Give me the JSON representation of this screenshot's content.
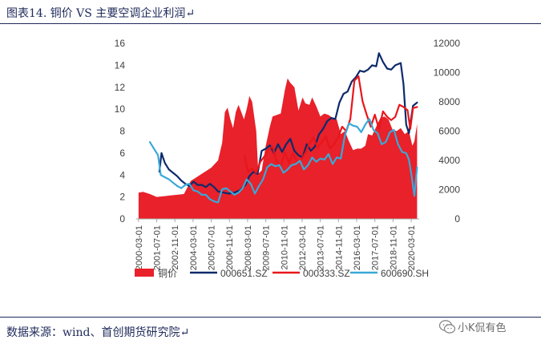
{
  "header": {
    "title": "图表14.    铜价 VS 主要空调企业利润↵"
  },
  "footer": {
    "source": "数据来源：wind、首创期货研究院↵"
  },
  "watermark": {
    "text": "小K侃有色"
  },
  "colors": {
    "copper": "#e8212a",
    "s000651": "#0d2a6b",
    "s000333": "#e8161b",
    "s600690": "#3aa8d8",
    "text": "#1f2a5a"
  },
  "chart_data": {
    "type": "area+line",
    "x_ticks": [
      "2000-03-01",
      "2001-07-01",
      "2002-11-01",
      "2004-03-01",
      "2005-07-01",
      "2006-11-01",
      "2008-03-01",
      "2009-07-01",
      "2010-11-01",
      "2012-03-01",
      "2013-07-01",
      "2014-11-01",
      "2016-03-01",
      "2017-07-01",
      "2018-11-01",
      "2020-03-01"
    ],
    "y_left": {
      "min": 0,
      "max": 16,
      "ticks": [
        0,
        2,
        4,
        6,
        8,
        10,
        12,
        14,
        16
      ]
    },
    "y_right": {
      "min": 0,
      "max": 12000,
      "ticks": [
        0,
        2000,
        4000,
        6000,
        8000,
        10000,
        12000
      ]
    },
    "legend_position": "bottom",
    "series": [
      {
        "name": "铜价",
        "axis": "right",
        "kind": "area",
        "points": [
          [
            2000.17,
            1800
          ],
          [
            2000.5,
            1850
          ],
          [
            2001.0,
            1700
          ],
          [
            2001.5,
            1500
          ],
          [
            2002.0,
            1550
          ],
          [
            2002.5,
            1600
          ],
          [
            2003.0,
            1650
          ],
          [
            2003.5,
            1700
          ],
          [
            2004.0,
            2600
          ],
          [
            2004.5,
            2900
          ],
          [
            2005.0,
            3200
          ],
          [
            2005.5,
            3500
          ],
          [
            2006.0,
            4000
          ],
          [
            2006.3,
            5200
          ],
          [
            2006.5,
            7300
          ],
          [
            2006.7,
            7600
          ],
          [
            2006.9,
            6800
          ],
          [
            2007.1,
            6200
          ],
          [
            2007.3,
            7300
          ],
          [
            2007.5,
            7800
          ],
          [
            2007.7,
            7300
          ],
          [
            2007.9,
            6800
          ],
          [
            2008.1,
            7500
          ],
          [
            2008.3,
            8400
          ],
          [
            2008.5,
            8000
          ],
          [
            2008.8,
            6000
          ],
          [
            2008.95,
            3100
          ],
          [
            2009.2,
            3300
          ],
          [
            2009.5,
            5000
          ],
          [
            2009.8,
            6300
          ],
          [
            2010.0,
            7000
          ],
          [
            2010.3,
            7100
          ],
          [
            2010.6,
            7200
          ],
          [
            2010.9,
            8800
          ],
          [
            2011.1,
            9600
          ],
          [
            2011.3,
            9300
          ],
          [
            2011.6,
            9000
          ],
          [
            2011.9,
            7400
          ],
          [
            2012.2,
            8300
          ],
          [
            2012.4,
            7900
          ],
          [
            2012.7,
            7800
          ],
          [
            2012.9,
            8300
          ],
          [
            2013.2,
            7700
          ],
          [
            2013.5,
            7000
          ],
          [
            2013.8,
            7200
          ],
          [
            2014.1,
            7100
          ],
          [
            2014.4,
            6900
          ],
          [
            2014.7,
            6800
          ],
          [
            2015.0,
            5800
          ],
          [
            2015.3,
            6000
          ],
          [
            2015.6,
            5300
          ],
          [
            2015.9,
            4700
          ],
          [
            2016.2,
            4800
          ],
          [
            2016.5,
            4800
          ],
          [
            2016.8,
            5000
          ],
          [
            2017.0,
            5800
          ],
          [
            2017.3,
            5700
          ],
          [
            2017.6,
            6300
          ],
          [
            2017.9,
            6900
          ],
          [
            2018.2,
            7000
          ],
          [
            2018.5,
            6800
          ],
          [
            2018.8,
            6100
          ],
          [
            2019.1,
            6000
          ],
          [
            2019.4,
            6200
          ],
          [
            2019.7,
            5800
          ],
          [
            2020.0,
            6000
          ],
          [
            2020.25,
            5000
          ],
          [
            2020.4,
            5300
          ],
          [
            2020.6,
            6500
          ]
        ]
      },
      {
        "name": "000651.SZ",
        "axis": "left",
        "kind": "line",
        "points": [
          [
            2001.7,
            4.3
          ],
          [
            2001.85,
            6.0
          ],
          [
            2002.1,
            5.1
          ],
          [
            2002.4,
            4.5
          ],
          [
            2002.7,
            4.2
          ],
          [
            2003.0,
            3.9
          ],
          [
            2003.3,
            3.5
          ],
          [
            2003.6,
            3.2
          ],
          [
            2003.9,
            3.0
          ],
          [
            2004.2,
            3.4
          ],
          [
            2004.5,
            3.1
          ],
          [
            2004.8,
            3.1
          ],
          [
            2005.1,
            2.9
          ],
          [
            2005.4,
            3.2
          ],
          [
            2005.7,
            2.9
          ],
          [
            2006.0,
            2.5
          ],
          [
            2006.4,
            2.4
          ],
          [
            2006.8,
            2.3
          ],
          [
            2007.2,
            2.4
          ],
          [
            2007.6,
            2.6
          ],
          [
            2008.0,
            3.1
          ],
          [
            2008.3,
            3.9
          ],
          [
            2008.6,
            4.3
          ],
          [
            2008.9,
            4.1
          ],
          [
            2009.2,
            6.2
          ],
          [
            2009.5,
            6.4
          ],
          [
            2009.8,
            6.7
          ],
          [
            2010.1,
            6.0
          ],
          [
            2010.4,
            6.8
          ],
          [
            2010.7,
            6.1
          ],
          [
            2011.0,
            6.8
          ],
          [
            2011.3,
            7.3
          ],
          [
            2011.6,
            6.2
          ],
          [
            2011.9,
            5.8
          ],
          [
            2012.2,
            5.6
          ],
          [
            2012.5,
            6.8
          ],
          [
            2012.8,
            6.2
          ],
          [
            2013.1,
            6.6
          ],
          [
            2013.4,
            7.7
          ],
          [
            2013.7,
            8.2
          ],
          [
            2014.0,
            8.9
          ],
          [
            2014.3,
            9.2
          ],
          [
            2014.6,
            9.1
          ],
          [
            2014.9,
            10.6
          ],
          [
            2015.2,
            11.4
          ],
          [
            2015.5,
            11.6
          ],
          [
            2015.8,
            12.5
          ],
          [
            2016.1,
            12.9
          ],
          [
            2016.4,
            13.5
          ],
          [
            2016.7,
            13.4
          ],
          [
            2017.0,
            13.6
          ],
          [
            2017.3,
            14.0
          ],
          [
            2017.6,
            13.9
          ],
          [
            2017.8,
            15.1
          ],
          [
            2018.1,
            14.3
          ],
          [
            2018.4,
            13.7
          ],
          [
            2018.7,
            13.6
          ],
          [
            2019.0,
            14.0
          ],
          [
            2019.4,
            14.2
          ],
          [
            2019.6,
            12.3
          ],
          [
            2019.8,
            8.6
          ],
          [
            2020.0,
            7.8
          ],
          [
            2020.3,
            10.3
          ],
          [
            2020.6,
            10.6
          ]
        ]
      },
      {
        "name": "000333.SZ",
        "axis": "left",
        "kind": "line",
        "points": [
          [
            2007.95,
            5.7
          ],
          [
            2008.2,
            4.3
          ],
          [
            2008.5,
            4.6
          ],
          [
            2008.8,
            4.2
          ],
          [
            2009.1,
            5.2
          ],
          [
            2009.4,
            5.7
          ],
          [
            2009.7,
            6.3
          ],
          [
            2010.0,
            6.6
          ],
          [
            2010.3,
            5.2
          ],
          [
            2010.6,
            4.8
          ],
          [
            2010.9,
            6.1
          ],
          [
            2011.2,
            5.1
          ],
          [
            2011.5,
            6.0
          ],
          [
            2011.8,
            5.2
          ],
          [
            2012.1,
            5.4
          ],
          [
            2012.4,
            6.0
          ],
          [
            2012.7,
            6.9
          ],
          [
            2013.0,
            7.4
          ],
          [
            2013.3,
            6.5
          ],
          [
            2013.6,
            7.0
          ],
          [
            2013.9,
            7.5
          ],
          [
            2014.2,
            6.4
          ],
          [
            2014.5,
            6.8
          ],
          [
            2014.8,
            7.4
          ],
          [
            2015.1,
            8.4
          ],
          [
            2015.4,
            8.0
          ],
          [
            2015.7,
            9.1
          ],
          [
            2016.0,
            12.6
          ],
          [
            2016.3,
            13.0
          ],
          [
            2016.6,
            10.7
          ],
          [
            2016.9,
            9.5
          ],
          [
            2017.2,
            8.4
          ],
          [
            2017.5,
            9.5
          ],
          [
            2017.8,
            8.2
          ],
          [
            2018.1,
            9.8
          ],
          [
            2018.4,
            9.3
          ],
          [
            2018.7,
            9.0
          ],
          [
            2019.0,
            9.3
          ],
          [
            2019.3,
            10.4
          ],
          [
            2019.6,
            10.2
          ],
          [
            2019.9,
            9.9
          ],
          [
            2020.1,
            8.2
          ],
          [
            2020.3,
            10.1
          ],
          [
            2020.6,
            10.2
          ]
        ]
      },
      {
        "name": "600690.SH",
        "axis": "left",
        "kind": "line",
        "points": [
          [
            2001.0,
            7.0
          ],
          [
            2001.3,
            6.4
          ],
          [
            2001.6,
            5.8
          ],
          [
            2001.8,
            4.0
          ],
          [
            2002.1,
            3.8
          ],
          [
            2002.4,
            3.6
          ],
          [
            2002.7,
            3.3
          ],
          [
            2003.0,
            3.0
          ],
          [
            2003.3,
            2.8
          ],
          [
            2003.6,
            3.1
          ],
          [
            2003.9,
            3.2
          ],
          [
            2004.2,
            2.6
          ],
          [
            2004.5,
            2.5
          ],
          [
            2004.8,
            2.2
          ],
          [
            2005.1,
            2.2
          ],
          [
            2005.4,
            1.8
          ],
          [
            2005.7,
            1.6
          ],
          [
            2006.0,
            1.5
          ],
          [
            2006.3,
            2.7
          ],
          [
            2006.6,
            2.8
          ],
          [
            2006.9,
            2.5
          ],
          [
            2007.2,
            2.2
          ],
          [
            2007.5,
            2.4
          ],
          [
            2007.8,
            2.8
          ],
          [
            2008.1,
            3.6
          ],
          [
            2008.4,
            3.2
          ],
          [
            2008.7,
            2.3
          ],
          [
            2009.0,
            3.0
          ],
          [
            2009.3,
            3.6
          ],
          [
            2009.6,
            4.7
          ],
          [
            2009.9,
            5.0
          ],
          [
            2010.2,
            4.8
          ],
          [
            2010.5,
            4.9
          ],
          [
            2010.8,
            4.2
          ],
          [
            2011.1,
            4.5
          ],
          [
            2011.4,
            4.9
          ],
          [
            2011.7,
            5.0
          ],
          [
            2012.0,
            5.3
          ],
          [
            2012.3,
            4.5
          ],
          [
            2012.6,
            4.9
          ],
          [
            2012.9,
            5.6
          ],
          [
            2013.2,
            5.2
          ],
          [
            2013.5,
            5.5
          ],
          [
            2013.8,
            5.4
          ],
          [
            2014.1,
            5.9
          ],
          [
            2014.4,
            5.0
          ],
          [
            2014.7,
            5.6
          ],
          [
            2015.0,
            5.5
          ],
          [
            2015.3,
            7.6
          ],
          [
            2015.6,
            8.7
          ],
          [
            2015.9,
            8.5
          ],
          [
            2016.2,
            8.4
          ],
          [
            2016.5,
            7.9
          ],
          [
            2016.8,
            8.6
          ],
          [
            2017.1,
            9.1
          ],
          [
            2017.4,
            8.1
          ],
          [
            2017.7,
            7.8
          ],
          [
            2018.0,
            6.8
          ],
          [
            2018.3,
            7.0
          ],
          [
            2018.6,
            7.9
          ],
          [
            2018.9,
            8.1
          ],
          [
            2019.2,
            6.8
          ],
          [
            2019.5,
            6.1
          ],
          [
            2019.8,
            6.0
          ],
          [
            2020.0,
            5.4
          ],
          [
            2020.2,
            3.9
          ],
          [
            2020.4,
            2.1
          ],
          [
            2020.6,
            4.7
          ]
        ]
      }
    ]
  }
}
